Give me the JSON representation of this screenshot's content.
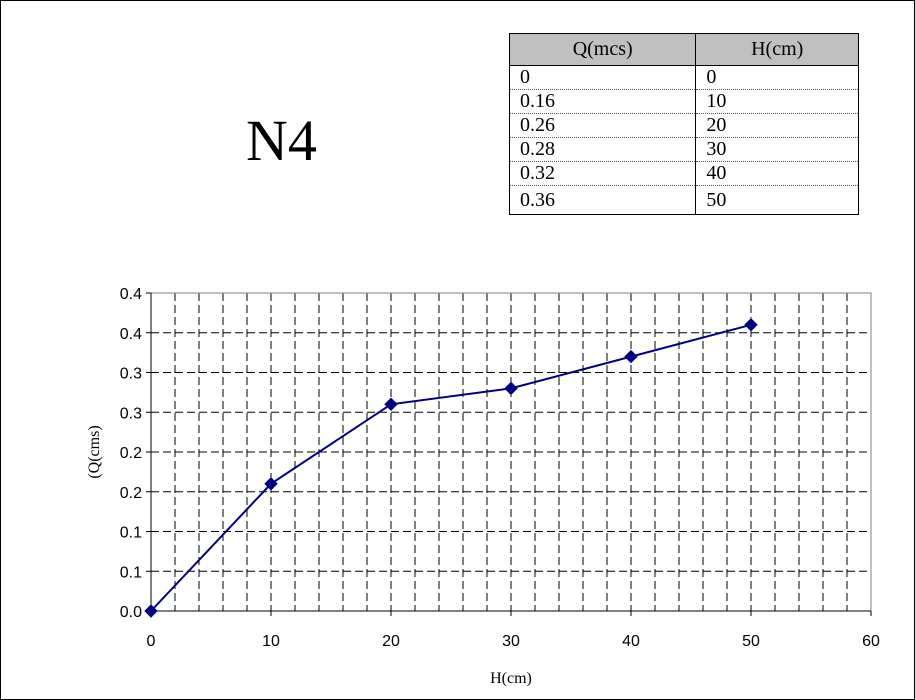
{
  "title": "N4",
  "table": {
    "headers": [
      "Q(mcs)",
      "H(cm)"
    ],
    "rows": [
      [
        "0",
        "0"
      ],
      [
        "0.16",
        "10"
      ],
      [
        "0.26",
        "20"
      ],
      [
        "0.28",
        "30"
      ],
      [
        "0.32",
        "40"
      ],
      [
        "0.36",
        "50"
      ]
    ]
  },
  "chart_data": {
    "type": "line",
    "xlabel": "H(cm)",
    "ylabel": "(Q(cms)",
    "x": [
      0,
      10,
      20,
      30,
      40,
      50
    ],
    "y": [
      0,
      0.16,
      0.26,
      0.28,
      0.32,
      0.36
    ],
    "xlim": [
      0,
      60
    ],
    "ylim": [
      0,
      0.4
    ],
    "xticks": [
      "0",
      "10",
      "20",
      "30",
      "40",
      "50",
      "60"
    ],
    "yticks": [
      "0.0",
      "0.1",
      "0.1",
      "0.2",
      "0.2",
      "0.3",
      "0.3",
      "0.4",
      "0.4"
    ],
    "grid": true,
    "line_color": "#000080",
    "marker": "diamond"
  }
}
